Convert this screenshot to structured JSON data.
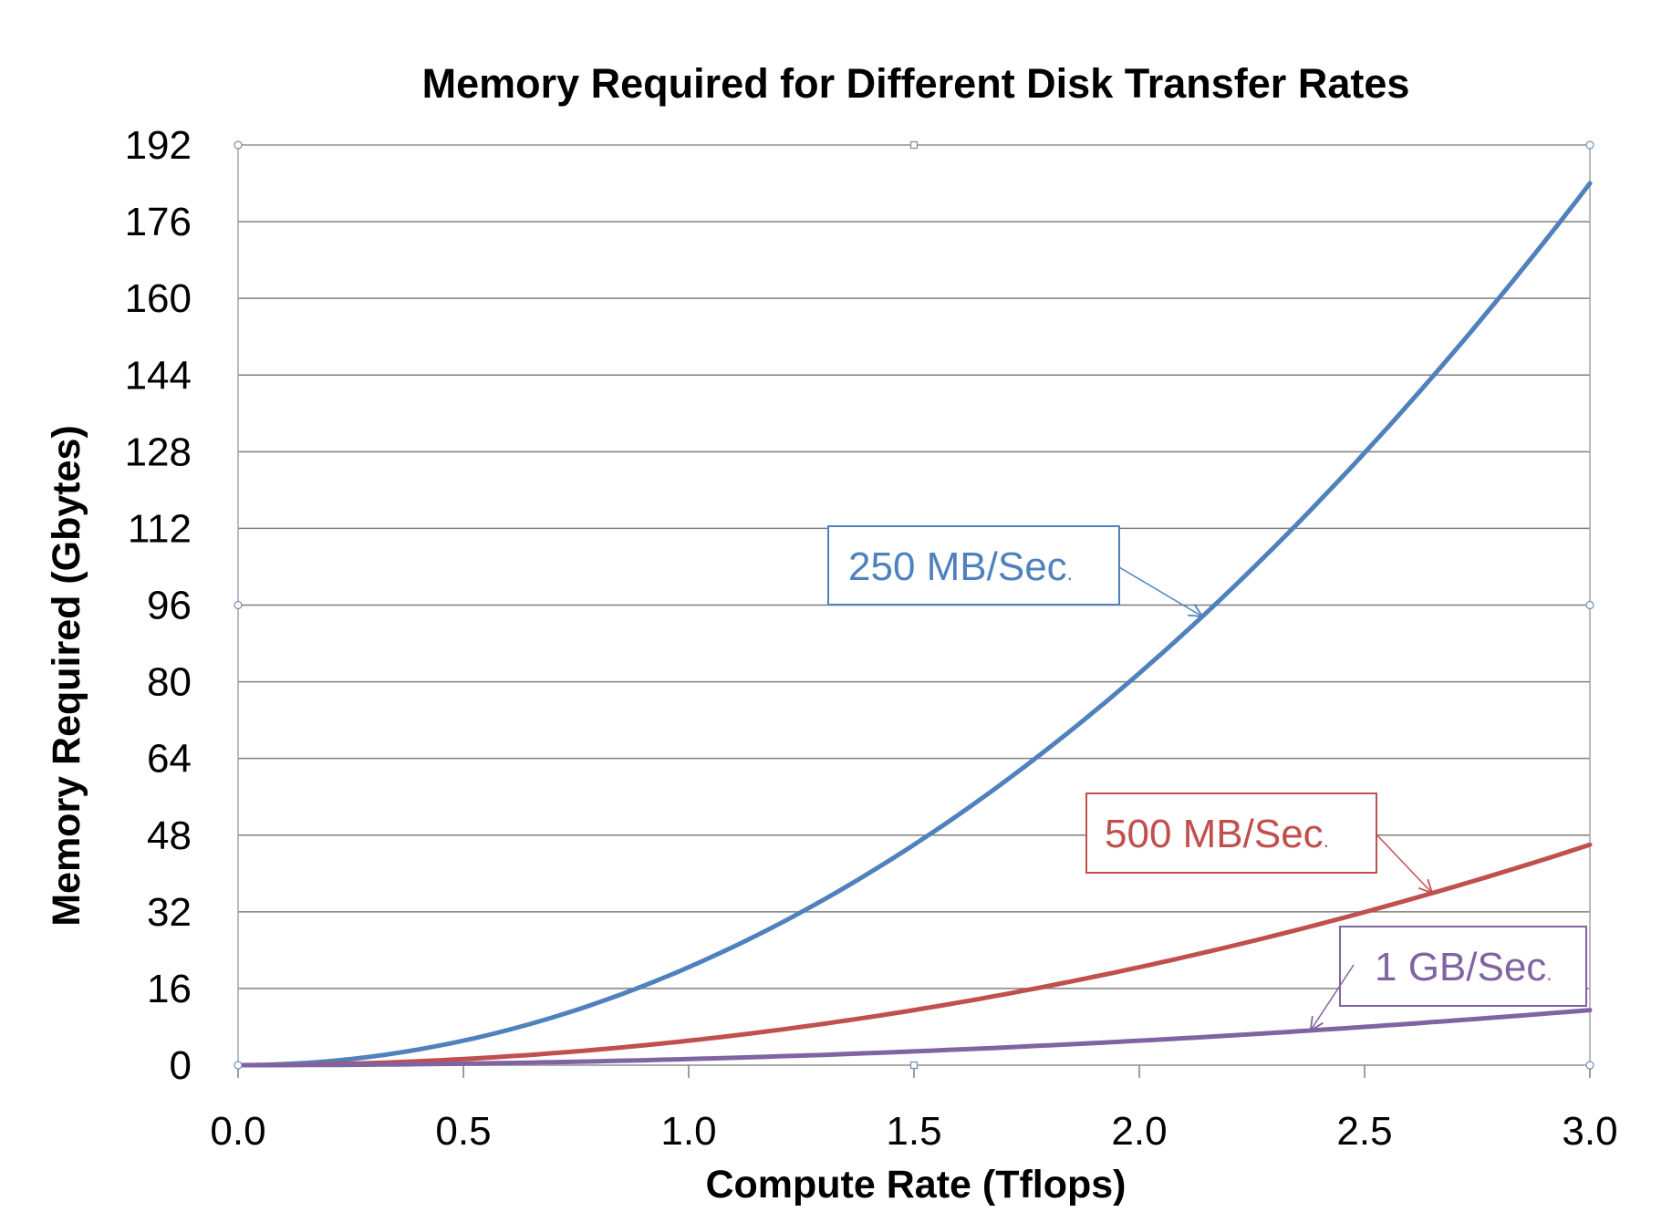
{
  "chart_data": {
    "type": "line",
    "title": "Memory Required for Different Disk Transfer Rates",
    "xlabel": "Compute Rate (Tflops)",
    "ylabel": "Memory Required (Gbytes)",
    "xlim": [
      0,
      3
    ],
    "ylim": [
      0,
      192
    ],
    "x_ticks": [
      "0.0",
      "0.5",
      "1.0",
      "1.5",
      "2.0",
      "2.5",
      "3.0"
    ],
    "y_ticks": [
      "0",
      "16",
      "32",
      "48",
      "64",
      "80",
      "96",
      "112",
      "128",
      "144",
      "160",
      "176",
      "192"
    ],
    "grid": "horizontal",
    "legend": "none",
    "x": [
      0,
      0.25,
      0.5,
      0.75,
      1.0,
      1.25,
      1.5,
      1.75,
      2.0,
      2.25,
      2.5,
      2.75,
      3.0
    ],
    "series": [
      {
        "color": "#4F81BD",
        "values": [
          0,
          1.3,
          5.1,
          11.5,
          20.4,
          31.9,
          46.0,
          62.6,
          81.8,
          103.5,
          127.8,
          154.6,
          184.0
        ]
      },
      {
        "color": "#C0504D",
        "values": [
          0,
          0.3,
          1.3,
          2.9,
          5.1,
          8.0,
          11.5,
          15.6,
          20.4,
          25.9,
          31.9,
          38.7,
          46.0
        ]
      },
      {
        "color": "#8064A2",
        "values": [
          0,
          0.1,
          0.3,
          0.7,
          1.3,
          2.0,
          2.9,
          3.9,
          5.1,
          6.5,
          8.0,
          9.7,
          11.5
        ]
      }
    ],
    "annotations": [
      {
        "main": "250 MB/Sec",
        "dot": ".",
        "color": "#4F81BD",
        "target_x": 2.14
      },
      {
        "main": "500 MB/Sec",
        "dot": ".",
        "color": "#C0504D",
        "target_x": 2.65
      },
      {
        "main": "1 GB/Sec",
        "dot": ".",
        "color": "#8064A2",
        "target_x": 2.38
      }
    ]
  }
}
